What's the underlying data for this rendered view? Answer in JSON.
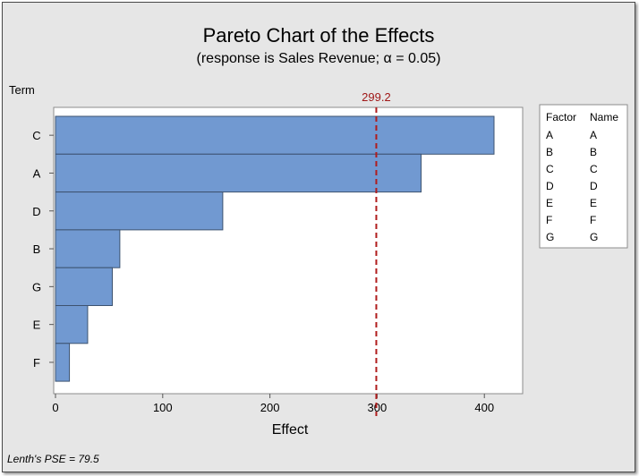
{
  "chart_data": {
    "type": "bar",
    "orientation": "horizontal",
    "title": "Pareto Chart of the Effects",
    "subtitle": "(response is Sales Revenue; α = 0.05)",
    "ylabel": "Term",
    "xlabel": "Effect",
    "categories": [
      "C",
      "A",
      "D",
      "B",
      "G",
      "E",
      "F"
    ],
    "values": [
      409,
      341,
      156,
      60,
      53,
      30,
      13
    ],
    "xlim": [
      0,
      420
    ],
    "xticks": [
      0,
      100,
      200,
      300,
      400
    ],
    "reference_line": {
      "value": 299.2,
      "label": "299.2"
    },
    "legend": {
      "headers": [
        "Factor",
        "Name"
      ],
      "rows": [
        [
          "A",
          "A"
        ],
        [
          "B",
          "B"
        ],
        [
          "C",
          "C"
        ],
        [
          "D",
          "D"
        ],
        [
          "E",
          "E"
        ],
        [
          "F",
          "F"
        ],
        [
          "G",
          "G"
        ]
      ]
    },
    "footnote": "Lenth's PSE = 79.5",
    "colors": {
      "bar": "#7199d1",
      "bar_stroke": "#3d5370",
      "reference_line": "#b01c1c",
      "background": "#e6e6e6",
      "plot_area": "#ffffff"
    }
  }
}
